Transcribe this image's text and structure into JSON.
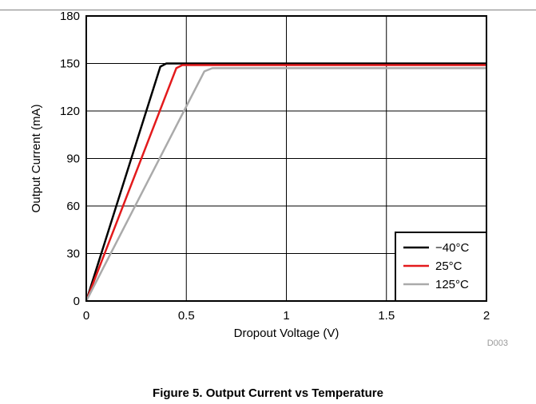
{
  "chart_data": {
    "type": "line",
    "xlabel": "Dropout Voltage (V)",
    "ylabel": "Output Current (mA)",
    "xlim": [
      0,
      2
    ],
    "ylim": [
      0,
      180
    ],
    "x_ticks": [
      "0",
      "0.5",
      "1",
      "1.5",
      "2"
    ],
    "y_ticks": [
      "0",
      "30",
      "60",
      "90",
      "120",
      "150",
      "180"
    ],
    "grid": true,
    "legend_position": "bottom-right",
    "series": [
      {
        "name": "−40°C",
        "color": "#000000",
        "x": [
          0,
          0.37,
          0.4,
          2.0
        ],
        "y": [
          0,
          148,
          150,
          150
        ]
      },
      {
        "name": "25°C",
        "color": "#e31a1c",
        "x": [
          0,
          0.45,
          0.48,
          2.0
        ],
        "y": [
          0,
          147,
          149,
          149
        ]
      },
      {
        "name": "125°C",
        "color": "#aaaaaa",
        "x": [
          0,
          0.59,
          0.63,
          2.0
        ],
        "y": [
          0,
          145,
          147,
          147
        ]
      }
    ],
    "figure_code": "D003"
  },
  "caption": "Figure 5. Output Current vs Temperature"
}
